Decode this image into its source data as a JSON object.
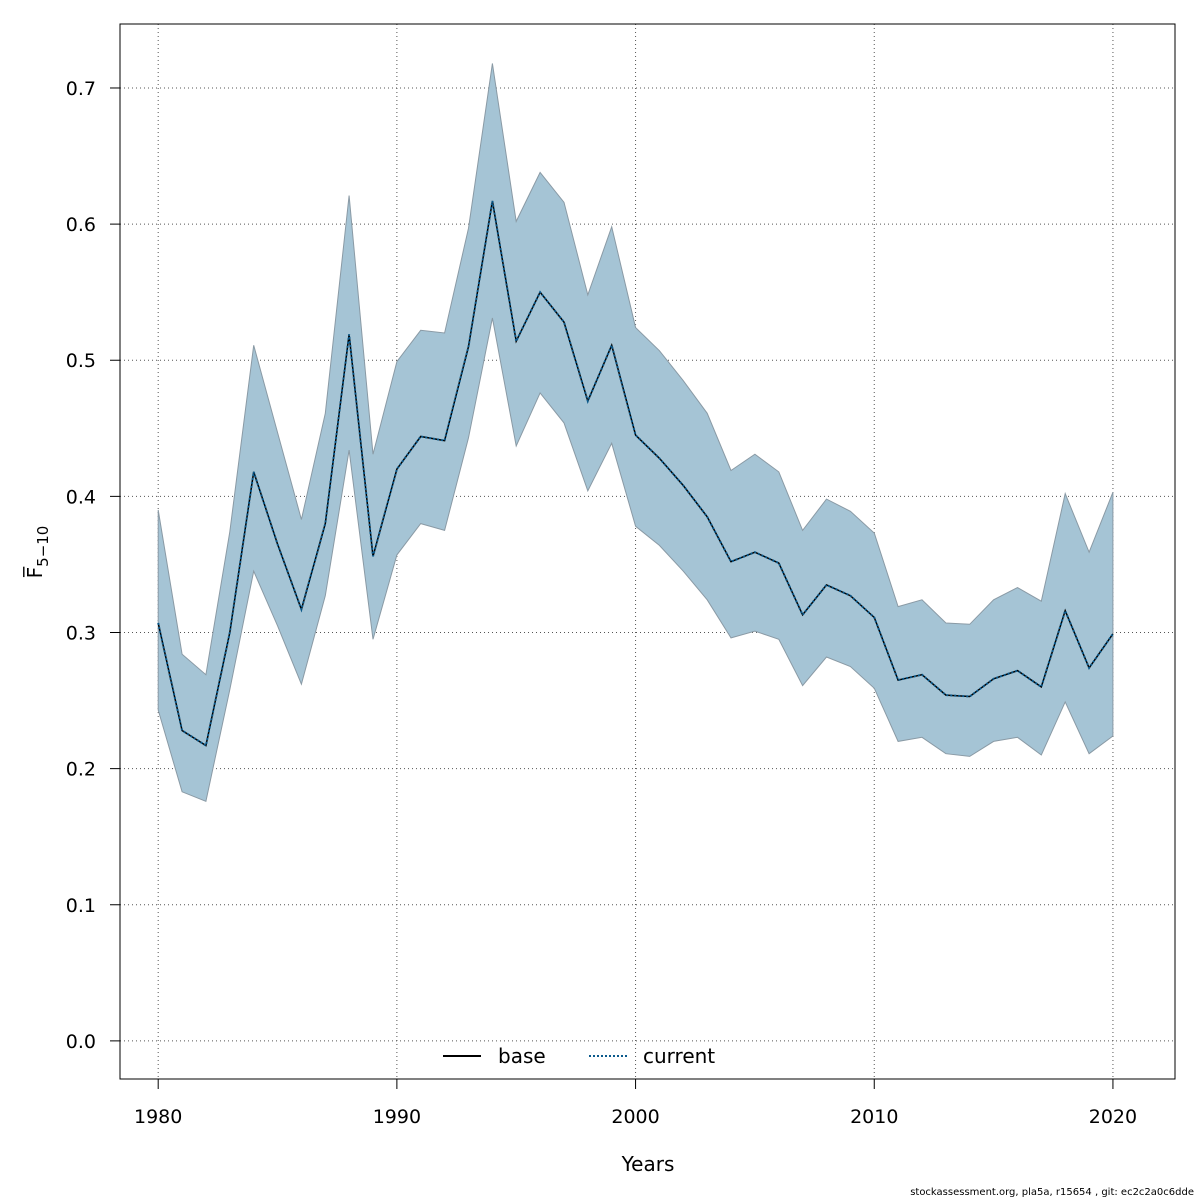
{
  "chart_data": {
    "type": "line",
    "title": "",
    "xlabel": "Years",
    "ylabel": "F̅",
    "ylabel_sub": "5−10",
    "xlim": [
      1978.4,
      2022.6
    ],
    "ylim": [
      -0.028,
      0.747
    ],
    "xticks": [
      1980,
      1990,
      2000,
      2010,
      2020
    ],
    "yticks": [
      0.0,
      0.1,
      0.2,
      0.3,
      0.4,
      0.5,
      0.6,
      0.7
    ],
    "ytick_labels": [
      "0.0",
      "0.1",
      "0.2",
      "0.3",
      "0.4",
      "0.5",
      "0.6",
      "0.7"
    ],
    "grid": true,
    "x": [
      1980,
      1981,
      1982,
      1983,
      1984,
      1985,
      1986,
      1987,
      1988,
      1989,
      1990,
      1991,
      1992,
      1993,
      1994,
      1995,
      1996,
      1997,
      1998,
      1999,
      2000,
      2001,
      2002,
      2003,
      2004,
      2005,
      2006,
      2007,
      2008,
      2009,
      2010,
      2011,
      2012,
      2013,
      2014,
      2015,
      2016,
      2017,
      2018,
      2019,
      2020
    ],
    "series": [
      {
        "name": "base",
        "style": "solid",
        "color": "#000000",
        "values": [
          0.307,
          0.228,
          0.217,
          0.3,
          0.418,
          0.365,
          0.317,
          0.38,
          0.519,
          0.356,
          0.42,
          0.444,
          0.441,
          0.51,
          0.617,
          0.514,
          0.55,
          0.528,
          0.47,
          0.511,
          0.445,
          0.428,
          0.408,
          0.385,
          0.352,
          0.359,
          0.351,
          0.313,
          0.335,
          0.327,
          0.311,
          0.265,
          0.269,
          0.254,
          0.253,
          0.266,
          0.272,
          0.26,
          0.316,
          0.274,
          0.299
        ]
      },
      {
        "name": "current",
        "style": "dotted",
        "color": "#0b5a8c",
        "values": [
          0.307,
          0.228,
          0.217,
          0.3,
          0.418,
          0.365,
          0.317,
          0.38,
          0.519,
          0.356,
          0.42,
          0.444,
          0.441,
          0.51,
          0.617,
          0.514,
          0.55,
          0.528,
          0.47,
          0.511,
          0.445,
          0.428,
          0.408,
          0.385,
          0.352,
          0.359,
          0.351,
          0.313,
          0.335,
          0.327,
          0.311,
          0.265,
          0.269,
          0.254,
          0.253,
          0.266,
          0.272,
          0.26,
          0.316,
          0.274,
          0.299
        ]
      }
    ],
    "confidence_band": {
      "name": "current",
      "color": "#a5c4d5",
      "lower": [
        0.243,
        0.183,
        0.176,
        0.258,
        0.345,
        0.305,
        0.262,
        0.327,
        0.434,
        0.295,
        0.357,
        0.38,
        0.375,
        0.443,
        0.531,
        0.437,
        0.476,
        0.454,
        0.404,
        0.439,
        0.378,
        0.364,
        0.345,
        0.324,
        0.296,
        0.301,
        0.295,
        0.261,
        0.282,
        0.275,
        0.259,
        0.22,
        0.223,
        0.211,
        0.209,
        0.22,
        0.223,
        0.21,
        0.249,
        0.211,
        0.224
      ],
      "upper": [
        0.39,
        0.284,
        0.269,
        0.374,
        0.511,
        0.447,
        0.383,
        0.461,
        0.621,
        0.431,
        0.499,
        0.522,
        0.52,
        0.597,
        0.718,
        0.602,
        0.638,
        0.616,
        0.548,
        0.598,
        0.524,
        0.507,
        0.485,
        0.461,
        0.419,
        0.431,
        0.418,
        0.375,
        0.398,
        0.389,
        0.373,
        0.319,
        0.324,
        0.307,
        0.306,
        0.324,
        0.333,
        0.323,
        0.402,
        0.359,
        0.403
      ]
    },
    "legend": {
      "placement": "bottom-center",
      "entries": [
        {
          "label": "base",
          "style": "solid",
          "color": "#000000"
        },
        {
          "label": "current",
          "style": "dotted",
          "color": "#0b5a8c"
        }
      ]
    }
  },
  "footer": "stockassessment.org, pla5a, r15654 , git: ec2c2a0c6dde"
}
